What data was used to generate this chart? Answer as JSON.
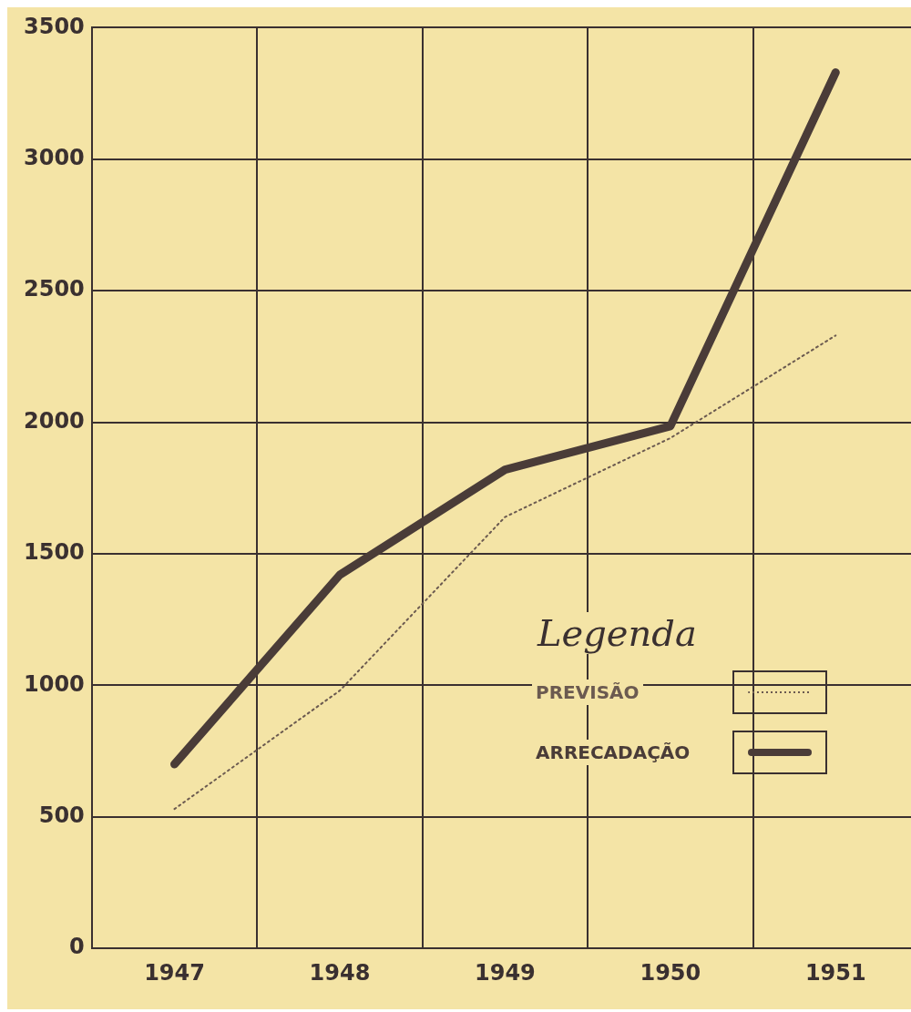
{
  "chart_data": {
    "type": "line",
    "legend_title": "Legenda",
    "legend": "bottom right",
    "grid": true,
    "marker": "none",
    "categories": [
      "1947",
      "1948",
      "1949",
      "1950",
      "1951"
    ],
    "ylim": [
      0,
      3500
    ],
    "yticks": [
      0,
      500,
      1000,
      1500,
      2000,
      2500,
      3000,
      3500
    ],
    "series": [
      {
        "name": "PREVISÃO",
        "color": "#6b5a50",
        "line_style": "dotted",
        "values": [
          530,
          980,
          1640,
          1940,
          2330
        ]
      },
      {
        "name": "ARRECADAÇÃO",
        "color": "#4a3c38",
        "line_style": "solid",
        "values": [
          700,
          1420,
          1820,
          1985,
          3330
        ]
      }
    ]
  }
}
